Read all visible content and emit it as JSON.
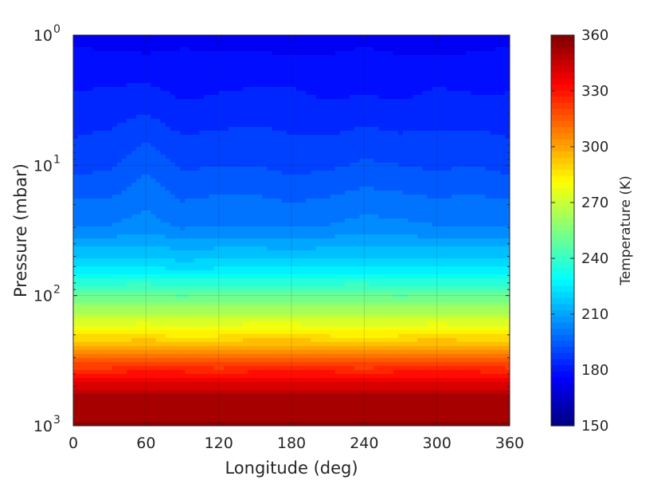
{
  "chart_data": {
    "type": "heatmap",
    "plot_style": "filled-contour",
    "colormap": "jet",
    "xlabel": "Longitude (deg)",
    "ylabel": "Pressure (mbar)",
    "colorbar_label": "Temperature (K)",
    "x_scale": "linear",
    "y_scale": "log",
    "y_direction": "reversed",
    "xlim": [
      0,
      360
    ],
    "ylim": [
      1,
      1000
    ],
    "x_ticks": [
      0,
      60,
      120,
      180,
      240,
      300,
      360
    ],
    "x_tick_labels": [
      "0",
      "60",
      "120",
      "180",
      "240",
      "300",
      "360"
    ],
    "y_ticks": [
      1,
      10,
      100,
      1000
    ],
    "y_tick_labels": [
      {
        "base": "10",
        "exp": "0"
      },
      {
        "base": "10",
        "exp": "1"
      },
      {
        "base": "10",
        "exp": "2"
      },
      {
        "base": "10",
        "exp": "3"
      }
    ],
    "clim": [
      150,
      360
    ],
    "colorbar_ticks": [
      150,
      180,
      210,
      240,
      270,
      300,
      330,
      360
    ],
    "colorbar_tick_labels": [
      "150",
      "180",
      "210",
      "240",
      "270",
      "300",
      "330",
      "360"
    ],
    "grid": true,
    "longitude": [
      0,
      30,
      60,
      90,
      120,
      150,
      180,
      210,
      240,
      270,
      300,
      330,
      360
    ],
    "pressure": [
      1,
      3,
      10,
      30,
      60,
      100,
      200,
      400,
      600,
      1000
    ],
    "temperature": [
      [
        175,
        174,
        173,
        175,
        174,
        174,
        173,
        174,
        175,
        174,
        173,
        174,
        175
      ],
      [
        182,
        183,
        184,
        181,
        182,
        183,
        183,
        181,
        182,
        181,
        183,
        182,
        182
      ],
      [
        190,
        191,
        196,
        191,
        192,
        192,
        190,
        191,
        193,
        192,
        191,
        192,
        190
      ],
      [
        203,
        203,
        205,
        202,
        203,
        203,
        202,
        203,
        205,
        204,
        203,
        203,
        203
      ],
      [
        222,
        222,
        223,
        221,
        222,
        222,
        222,
        222,
        223,
        222,
        222,
        222,
        222
      ],
      [
        250,
        250,
        250,
        249,
        250,
        250,
        250,
        250,
        250,
        249,
        250,
        250,
        250
      ],
      [
        285,
        285,
        286,
        284,
        285,
        286,
        286,
        285,
        284,
        285,
        286,
        285,
        285
      ],
      [
        330,
        330,
        332,
        331,
        330,
        331,
        332,
        331,
        330,
        331,
        332,
        331,
        330
      ],
      [
        352,
        352,
        352,
        352,
        352,
        352,
        352,
        352,
        352,
        352,
        352,
        352,
        352
      ],
      [
        355,
        355,
        355,
        355,
        355,
        355,
        355,
        355,
        355,
        355,
        355,
        355,
        355
      ]
    ]
  }
}
